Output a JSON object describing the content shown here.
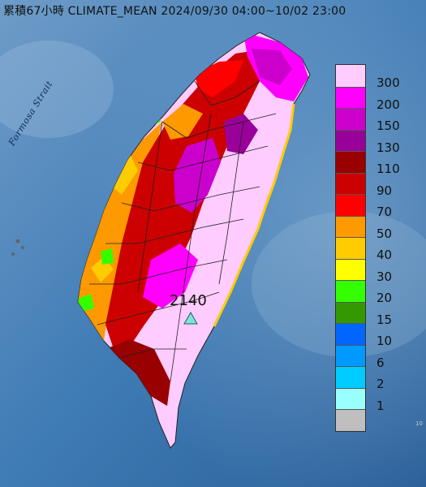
{
  "title": "累積67小時 CLIMATE_MEAN 2024/09/30 04:00~10/02 23:00",
  "strait_label": "Formosa Strait",
  "max_station": {
    "value": "2140",
    "marker_color": "#7fe3d8",
    "marker_icon": "triangle"
  },
  "legend": {
    "items": [
      {
        "label": "300",
        "color": "#ffccff"
      },
      {
        "label": "200",
        "color": "#ff00ff"
      },
      {
        "label": "150",
        "color": "#cc00cc"
      },
      {
        "label": "130",
        "color": "#990099"
      },
      {
        "label": "110",
        "color": "#990000"
      },
      {
        "label": "90",
        "color": "#cc0000"
      },
      {
        "label": "70",
        "color": "#ff0000"
      },
      {
        "label": "50",
        "color": "#ff9900"
      },
      {
        "label": "40",
        "color": "#ffcc00"
      },
      {
        "label": "30",
        "color": "#ffff00"
      },
      {
        "label": "20",
        "color": "#33ff00"
      },
      {
        "label": "15",
        "color": "#339900"
      },
      {
        "label": "10",
        "color": "#0066ff"
      },
      {
        "label": "6",
        "color": "#0099ff"
      },
      {
        "label": "2",
        "color": "#00ccff"
      },
      {
        "label": "1",
        "color": "#99ffff"
      },
      {
        "label": "",
        "color": "#bfbfbf"
      }
    ]
  },
  "corner_text": "10"
}
